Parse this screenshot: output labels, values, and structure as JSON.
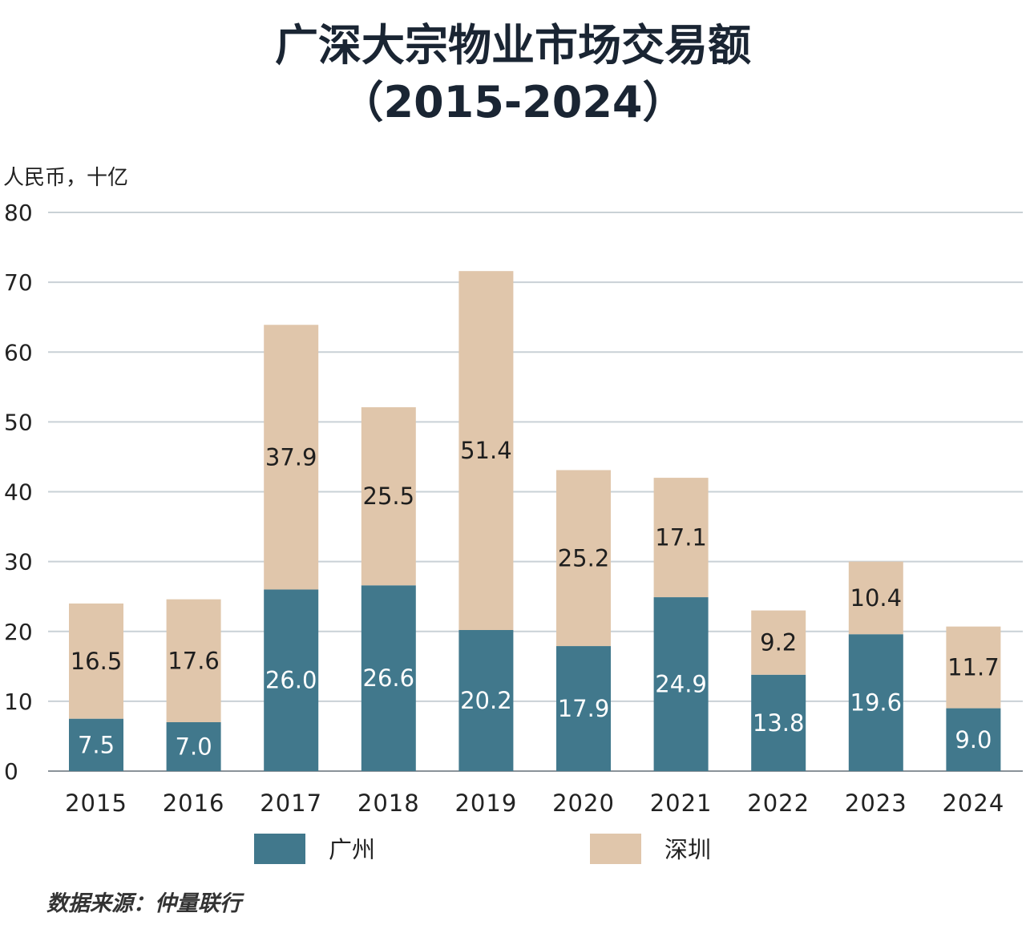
{
  "chart_data": {
    "type": "bar",
    "stacked": true,
    "title": "广深大宗物业市场交易额",
    "subtitle": "（2015-2024）",
    "ylabel": "人民币，十亿",
    "xlabel": "",
    "ylim": [
      0,
      80
    ],
    "yticks": [
      0,
      10,
      20,
      30,
      40,
      50,
      60,
      70,
      80
    ],
    "grid": true,
    "legend_position": "bottom",
    "categories": [
      "2015",
      "2016",
      "2017",
      "2018",
      "2019",
      "2020",
      "2021",
      "2022",
      "2023",
      "2024"
    ],
    "series": [
      {
        "name": "广州",
        "color": "#41788c",
        "values": [
          7.5,
          7.0,
          26.0,
          26.6,
          20.2,
          17.9,
          24.9,
          13.8,
          19.6,
          9.0
        ],
        "labels": [
          "7.5",
          "7.0",
          "26.0",
          "26.6",
          "20.2",
          "17.9",
          "24.9",
          "13.8",
          "19.6",
          "9.0"
        ]
      },
      {
        "name": "深圳",
        "color": "#e0c6ab",
        "values": [
          16.5,
          17.6,
          37.9,
          25.5,
          51.4,
          25.2,
          17.1,
          9.2,
          10.4,
          11.7
        ],
        "labels": [
          "16.5",
          "17.6",
          "37.9",
          "25.5",
          "51.4",
          "25.2",
          "17.1",
          "9.2",
          "10.4",
          "11.7"
        ]
      }
    ],
    "source": "数据来源：仲量联行"
  }
}
